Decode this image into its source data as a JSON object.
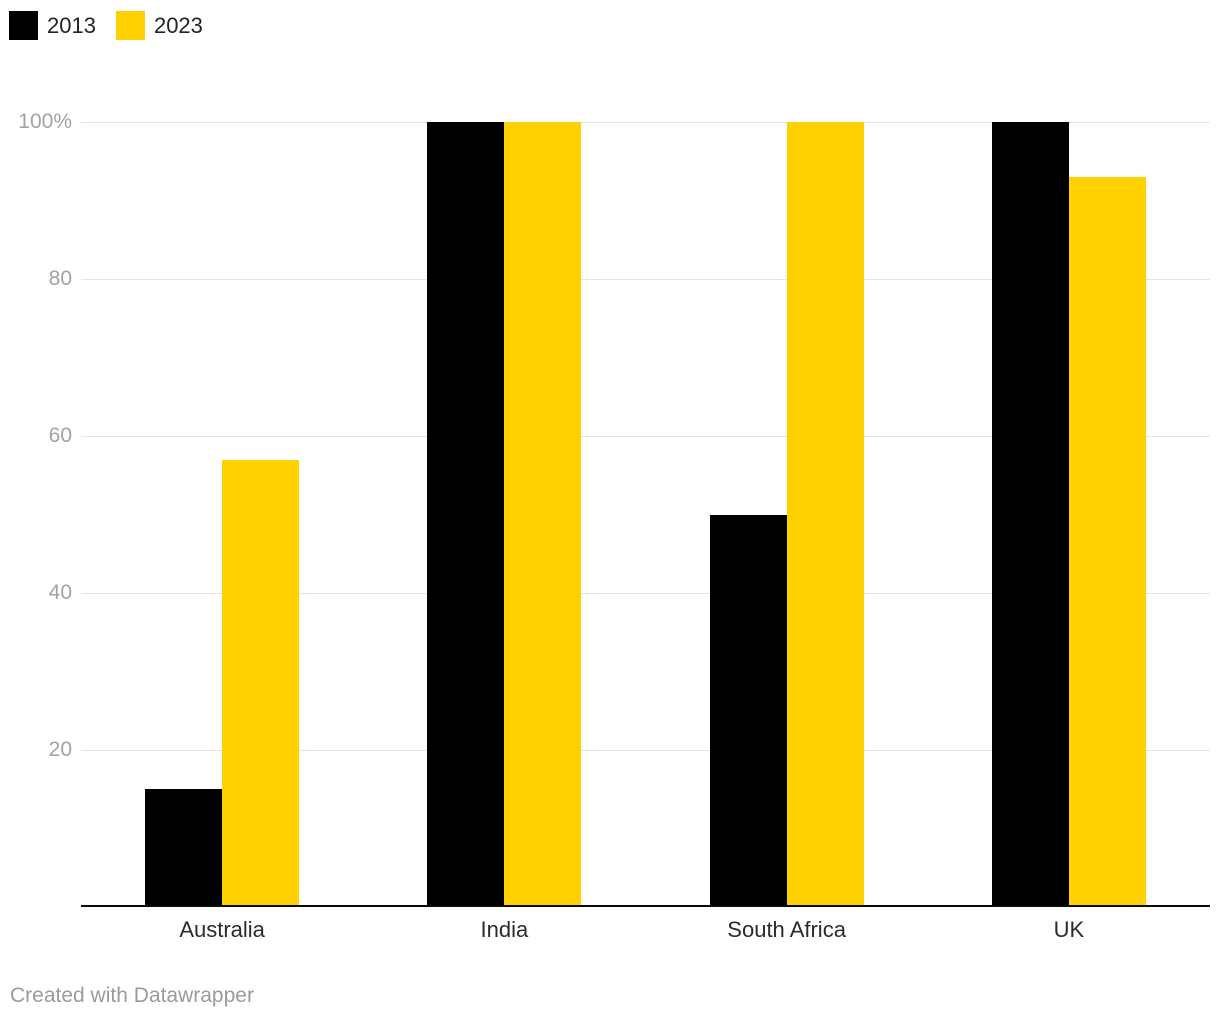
{
  "legend": {
    "items": [
      {
        "label": "2013",
        "color": "#000000"
      },
      {
        "label": "2023",
        "color": "#FFD100"
      }
    ]
  },
  "footer": {
    "text": "Created with Datawrapper"
  },
  "chart_data": {
    "type": "bar",
    "categories": [
      "Australia",
      "India",
      "South Africa",
      "UK"
    ],
    "series": [
      {
        "name": "2013",
        "color": "#000000",
        "values": [
          15,
          100,
          50,
          100
        ]
      },
      {
        "name": "2023",
        "color": "#FFD100",
        "values": [
          57,
          100,
          100,
          93
        ]
      }
    ],
    "title": "",
    "xlabel": "",
    "ylabel": "",
    "ylim": [
      0,
      100
    ],
    "yticks": [
      {
        "value": 20,
        "label": "20"
      },
      {
        "value": 40,
        "label": "40"
      },
      {
        "value": 60,
        "label": "60"
      },
      {
        "value": 80,
        "label": "80"
      },
      {
        "value": 100,
        "label": "100%"
      }
    ],
    "grid": true,
    "legend_position": "top-left",
    "bar_group_layout": "grouped"
  }
}
